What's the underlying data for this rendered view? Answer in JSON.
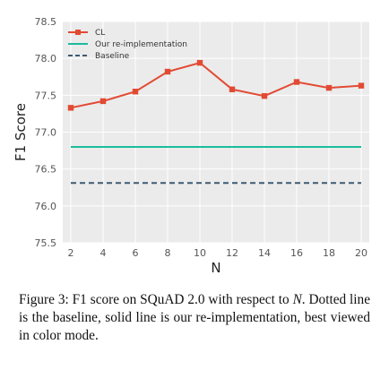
{
  "chart_data": {
    "type": "line",
    "xlabel": "N",
    "ylabel": "F1 Score",
    "x": [
      2,
      4,
      6,
      8,
      10,
      12,
      14,
      16,
      18,
      20
    ],
    "xlim": [
      1.5,
      20.5
    ],
    "ylim": [
      75.5,
      78.5
    ],
    "xticks": [
      "2",
      "4",
      "6",
      "8",
      "10",
      "12",
      "14",
      "16",
      "18",
      "20"
    ],
    "yticks": [
      "75.5",
      "76.0",
      "76.5",
      "77.0",
      "77.5",
      "78.0",
      "78.5"
    ],
    "grid": true,
    "legend_position": "top-left",
    "background": "#ebebeb",
    "series": [
      {
        "name": "CL",
        "style": "solid-with-square-markers",
        "color": "#e24a33",
        "values": [
          77.33,
          77.42,
          77.55,
          77.82,
          77.94,
          77.58,
          77.49,
          77.68,
          77.6,
          77.63
        ]
      },
      {
        "name": "Our re-implementation",
        "style": "solid",
        "color": "#1abc9c",
        "values": [
          76.8,
          76.8,
          76.8,
          76.8,
          76.8,
          76.8,
          76.8,
          76.8,
          76.8,
          76.8
        ]
      },
      {
        "name": "Baseline",
        "style": "dashed",
        "color": "#3d5a73",
        "values": [
          76.31,
          76.31,
          76.31,
          76.31,
          76.31,
          76.31,
          76.31,
          76.31,
          76.31,
          76.31
        ]
      }
    ]
  },
  "caption": {
    "prefix": "Figure 3:  F1 score on SQuAD 2.0 with respect to ",
    "symbol": "N",
    "suffix": ".  Dotted line is the baseline, solid line is our re-implementation, best viewed in color mode."
  }
}
